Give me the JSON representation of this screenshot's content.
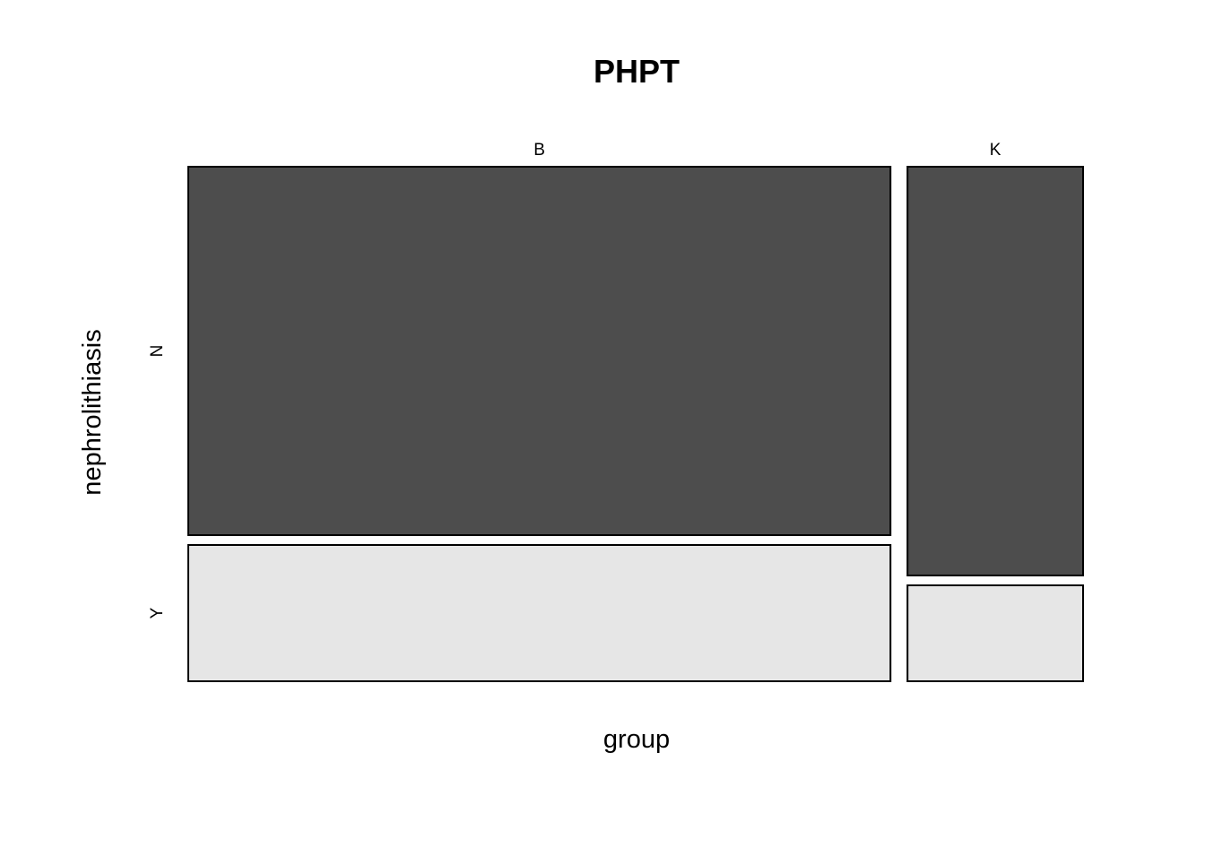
{
  "chart_data": {
    "type": "mosaic",
    "title": "PHPT",
    "xlabel": "group",
    "ylabel": "nephrolithiasis",
    "x_categories": [
      "B",
      "K"
    ],
    "y_categories": [
      "N",
      "Y"
    ],
    "x_proportions": [
      0.8,
      0.2
    ],
    "cells": [
      {
        "x": "B",
        "y": "N",
        "proportion_within_x": 0.73,
        "fill": "#4d4d4d"
      },
      {
        "x": "B",
        "y": "Y",
        "proportion_within_x": 0.27,
        "fill": "#e6e6e6"
      },
      {
        "x": "K",
        "y": "N",
        "proportion_within_x": 0.81,
        "fill": "#4d4d4d"
      },
      {
        "x": "K",
        "y": "Y",
        "proportion_within_x": 0.19,
        "fill": "#e6e6e6"
      }
    ],
    "colors": {
      "N": "#4d4d4d",
      "Y": "#e6e6e6",
      "border": "#000000"
    }
  }
}
